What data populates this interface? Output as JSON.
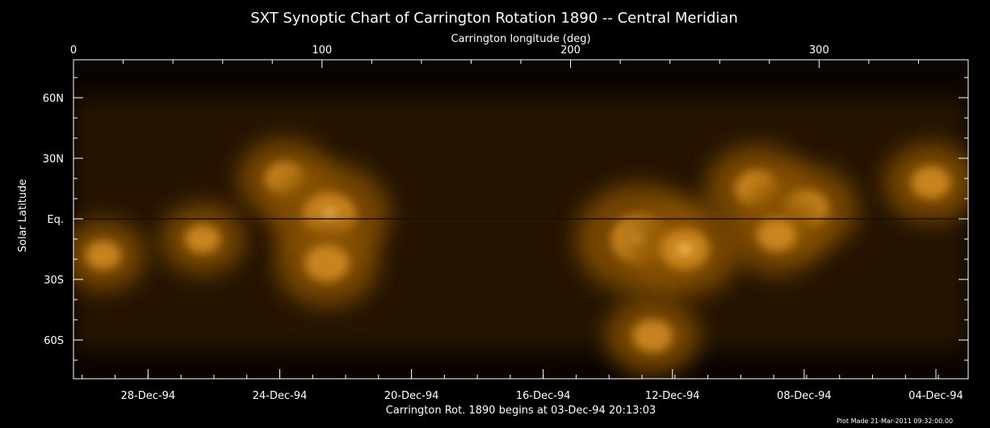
{
  "chart_data": {
    "type": "heatmap",
    "title": "SXT Synoptic Chart of Carrington Rotation 1890 -- Central Meridian",
    "x_top_label": "Carrington longitude (deg)",
    "x_top_ticks": [
      "0",
      "100",
      "200",
      "300"
    ],
    "x_top_tick_values": [
      0,
      100,
      200,
      300
    ],
    "x_range": [
      0,
      360
    ],
    "ylabel": "Solar Latitude",
    "y_ticks": [
      "60N",
      "30N",
      "Eq.",
      "30S",
      "60S"
    ],
    "y_tick_values": [
      60,
      30,
      0,
      -30,
      -60
    ],
    "x_bottom_label": "Carrington Rot. 1890 begins at 03-Dec-94 20:13:03",
    "x_bottom_ticks": [
      "28-Dec-94",
      "24-Dec-94",
      "20-Dec-94",
      "16-Dec-94",
      "12-Dec-94",
      "08-Dec-94",
      "04-Dec-94"
    ],
    "x_bottom_tick_lon": [
      30,
      83,
      136,
      189,
      241,
      294,
      347
    ],
    "footer": "Plot Made 21-Mar-2011 09:32:00.00",
    "colormap": [
      "#000000",
      "#3a2000",
      "#8a5200",
      "#d08a20",
      "#ffd27a",
      "#ffffff"
    ],
    "bright_regions": [
      {
        "lon": 85,
        "lat": 20,
        "intensity": 0.6
      },
      {
        "lon": 103,
        "lat": 2,
        "intensity": 0.9
      },
      {
        "lon": 102,
        "lat": -22,
        "intensity": 0.7
      },
      {
        "lon": 228,
        "lat": -10,
        "intensity": 1.0
      },
      {
        "lon": 246,
        "lat": -15,
        "intensity": 0.8
      },
      {
        "lon": 275,
        "lat": 15,
        "intensity": 0.7
      },
      {
        "lon": 295,
        "lat": 5,
        "intensity": 0.7
      },
      {
        "lon": 283,
        "lat": -8,
        "intensity": 0.6
      },
      {
        "lon": 345,
        "lat": 18,
        "intensity": 0.6
      },
      {
        "lon": 12,
        "lat": -18,
        "intensity": 0.5
      },
      {
        "lon": 52,
        "lat": -10,
        "intensity": 0.5
      },
      {
        "lon": 233,
        "lat": -58,
        "intensity": 0.6
      }
    ]
  }
}
